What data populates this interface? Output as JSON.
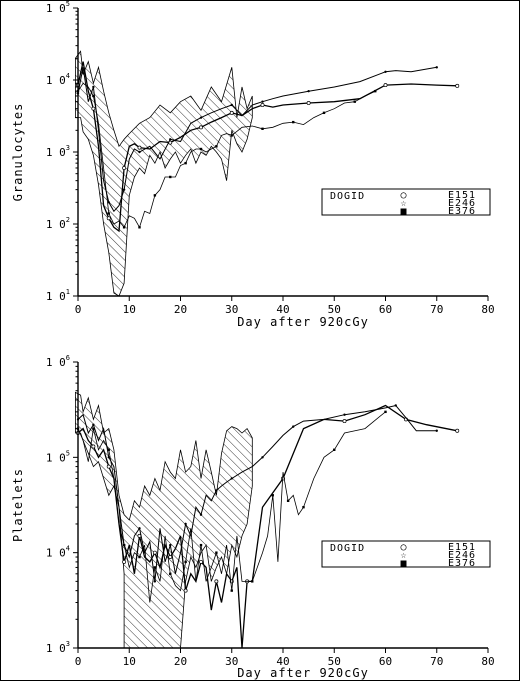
{
  "chart_data": [
    {
      "type": "line",
      "xlabel": "Day after 920cGy",
      "ylabel": "Granulocytes",
      "y_scale": "log",
      "xlim": [
        0,
        80
      ],
      "ylim": [
        10,
        100000
      ],
      "x_ticks": [
        0,
        10,
        20,
        30,
        40,
        50,
        60,
        70,
        80
      ],
      "y_ticks": [
        10,
        100,
        1000,
        10000,
        100000
      ],
      "y_tick_exponents": [
        "1",
        "2",
        "3",
        "4",
        "5"
      ],
      "legend": {
        "title": "DOGID",
        "placement": "center-right",
        "entries": [
          {
            "label": "E151",
            "marker": "○"
          },
          {
            "label": "E246",
            "marker": "☆"
          },
          {
            "label": "E376",
            "marker": "■"
          }
        ]
      },
      "band": {
        "x": [
          -0.5,
          0.5,
          1,
          2,
          3,
          4,
          5,
          6,
          7,
          8,
          9,
          10,
          12,
          14,
          16,
          18,
          20,
          22,
          24,
          26,
          28,
          30,
          31,
          32,
          33,
          34,
          34,
          33,
          32,
          31,
          30,
          29,
          28,
          27,
          26,
          25,
          24,
          23,
          22,
          21,
          20,
          19,
          18,
          17,
          16,
          15,
          14,
          13,
          12,
          11,
          10,
          9,
          8,
          7,
          6,
          5,
          4,
          3,
          2,
          1,
          0.5,
          -0.5
        ],
        "y": [
          20000,
          25000,
          12000,
          18000,
          9000,
          15000,
          7000,
          3500,
          2000,
          1200,
          1500,
          1800,
          2500,
          3000,
          4500,
          3500,
          5000,
          6000,
          3800,
          8000,
          5000,
          15000,
          3000,
          8000,
          4000,
          6000,
          3000,
          1500,
          1000,
          1300,
          2000,
          400,
          800,
          1000,
          1200,
          900,
          1000,
          700,
          1100,
          900,
          700,
          1000,
          800,
          600,
          1000,
          700,
          900,
          500,
          600,
          450,
          250,
          15,
          10,
          11,
          40,
          100,
          350,
          900,
          1500,
          1900,
          3000,
          3000
        ]
      },
      "series": [
        {
          "name": "E151",
          "x": [
            0,
            1,
            2,
            3,
            4,
            5,
            6,
            7,
            8,
            9,
            10,
            11,
            12,
            14,
            16,
            18,
            20,
            22,
            24,
            26,
            28,
            30,
            32,
            34,
            36,
            38,
            40,
            45,
            50,
            55,
            60,
            65,
            70,
            74
          ],
          "y": [
            8500,
            18000,
            7000,
            4000,
            1200,
            180,
            120,
            90,
            80,
            600,
            1200,
            1300,
            1150,
            1100,
            1400,
            1350,
            1600,
            2000,
            2200,
            2600,
            3000,
            3500,
            3200,
            4000,
            4500,
            4200,
            4500,
            4800,
            5000,
            5500,
            8500,
            8800,
            8500,
            8300
          ]
        },
        {
          "name": "E246",
          "x": [
            0,
            1,
            2,
            3,
            4,
            5,
            6,
            7,
            8,
            9,
            10,
            11,
            12,
            14,
            16,
            18,
            20,
            22,
            24,
            26,
            28,
            30,
            32,
            34,
            36,
            38,
            40,
            45,
            50,
            55,
            60,
            62,
            65,
            70
          ],
          "y": [
            6500,
            15000,
            5000,
            8000,
            2000,
            400,
            200,
            150,
            180,
            300,
            800,
            1100,
            1000,
            1200,
            800,
            1500,
            1400,
            2500,
            3000,
            3500,
            4000,
            4500,
            3200,
            4500,
            5000,
            5500,
            6000,
            7000,
            8000,
            9500,
            13000,
            13500,
            13000,
            15000
          ]
        },
        {
          "name": "E376",
          "x": [
            0,
            1,
            2,
            3,
            4,
            5,
            6,
            7,
            8,
            9,
            10,
            11,
            12,
            13,
            14,
            15,
            16,
            17,
            18,
            19,
            20,
            21,
            22,
            23,
            24,
            25,
            26,
            27,
            28,
            29,
            30,
            32,
            34,
            36,
            38,
            40,
            42,
            44,
            46,
            48,
            50,
            52,
            54,
            56,
            58
          ],
          "y": [
            7000,
            9000,
            8000,
            6000,
            2500,
            600,
            140,
            100,
            110,
            90,
            130,
            120,
            90,
            150,
            140,
            250,
            300,
            450,
            450,
            450,
            650,
            700,
            1000,
            1100,
            1100,
            1000,
            1100,
            1200,
            1700,
            1800,
            1700,
            2200,
            2300,
            2100,
            2200,
            2500,
            2600,
            2400,
            3000,
            3500,
            4000,
            4800,
            5000,
            6000,
            7000
          ]
        }
      ]
    },
    {
      "type": "line",
      "xlabel": "Day after 920cGy",
      "ylabel": "Platelets",
      "y_scale": "log",
      "xlim": [
        0,
        80
      ],
      "ylim": [
        1000,
        1000000
      ],
      "x_ticks": [
        0,
        10,
        20,
        30,
        40,
        50,
        60,
        70,
        80
      ],
      "y_ticks": [
        1000,
        10000,
        100000,
        1000000
      ],
      "y_tick_exponents": [
        "3",
        "4",
        "5",
        "6"
      ],
      "legend": {
        "title": "DOGID",
        "placement": "center-right",
        "entries": [
          {
            "label": "E151",
            "marker": "○"
          },
          {
            "label": "E246",
            "marker": "☆"
          },
          {
            "label": "E376",
            "marker": "■"
          }
        ]
      },
      "band": {
        "x": [
          -0.5,
          0.5,
          1,
          2,
          3,
          4,
          5,
          6,
          7,
          8,
          9,
          10,
          11,
          12,
          13,
          14,
          15,
          16,
          17,
          18,
          19,
          20,
          21,
          22,
          23,
          24,
          25,
          26,
          27,
          28,
          29,
          30,
          31,
          32,
          33,
          34,
          34,
          33,
          32,
          31,
          30,
          29,
          28,
          27,
          26,
          25,
          24,
          23,
          22,
          21,
          20,
          20,
          20,
          9,
          9,
          8,
          7,
          6,
          5,
          4,
          3,
          2,
          1,
          0.5,
          -0.5
        ],
        "y": [
          480000,
          450000,
          300000,
          420000,
          250000,
          350000,
          180000,
          200000,
          120000,
          40000,
          25000,
          22000,
          35000,
          30000,
          50000,
          40000,
          60000,
          45000,
          90000,
          70000,
          60000,
          120000,
          70000,
          80000,
          150000,
          60000,
          120000,
          70000,
          40000,
          110000,
          190000,
          210000,
          200000,
          180000,
          200000,
          160000,
          50000,
          20000,
          15000,
          9000,
          12000,
          6000,
          9000,
          7000,
          5000,
          12000,
          10000,
          7000,
          9000,
          5000,
          1000,
          1000,
          1000,
          1000,
          6000,
          30000,
          50000,
          40000,
          60000,
          90000,
          80000,
          110000,
          150000,
          180000,
          180000
        ]
      },
      "series": [
        {
          "name": "E151",
          "x": [
            0,
            1,
            2,
            3,
            4,
            5,
            6,
            7,
            8,
            9,
            10,
            11,
            12,
            13,
            14,
            15,
            16,
            17,
            18,
            19,
            20,
            21,
            22,
            23,
            24,
            25,
            26,
            27,
            28,
            29,
            30,
            31,
            32,
            33,
            34,
            36,
            40,
            44,
            48,
            52,
            56,
            60,
            64,
            68,
            74
          ],
          "y": [
            180000,
            200000,
            150000,
            130000,
            100000,
            120000,
            80000,
            60000,
            20000,
            8000,
            12000,
            6000,
            15000,
            9000,
            8000,
            10000,
            7000,
            12000,
            9000,
            11000,
            15000,
            4000,
            6000,
            5000,
            8000,
            7000,
            2500,
            5000,
            3000,
            6000,
            5000,
            7000,
            1000,
            5000,
            5000,
            30000,
            60000,
            200000,
            250000,
            240000,
            280000,
            350000,
            250000,
            220000,
            190000
          ]
        },
        {
          "name": "E246",
          "x": [
            0,
            1,
            2,
            3,
            4,
            5,
            6,
            7,
            8,
            9,
            10,
            11,
            12,
            13,
            14,
            15,
            16,
            17,
            18,
            19,
            20,
            21,
            22,
            23,
            24,
            25,
            26,
            27,
            28,
            29,
            30,
            32,
            34,
            36,
            38,
            40,
            42,
            44,
            48,
            52,
            56,
            60,
            62,
            64,
            66,
            70
          ],
          "y": [
            250000,
            280000,
            180000,
            220000,
            150000,
            200000,
            100000,
            80000,
            30000,
            12000,
            9000,
            15000,
            18000,
            10000,
            13000,
            5000,
            18000,
            8000,
            12000,
            6000,
            10000,
            20000,
            15000,
            30000,
            25000,
            40000,
            35000,
            45000,
            50000,
            55000,
            60000,
            70000,
            80000,
            100000,
            130000,
            170000,
            210000,
            240000,
            250000,
            280000,
            300000,
            330000,
            350000,
            260000,
            190000,
            190000
          ]
        },
        {
          "name": "E376",
          "x": [
            0,
            1,
            2,
            3,
            4,
            5,
            6,
            7,
            8,
            9,
            10,
            11,
            12,
            13,
            14,
            15,
            16,
            17,
            18,
            19,
            20,
            21,
            22,
            23,
            24,
            25,
            26,
            27,
            28,
            29,
            30,
            31,
            32,
            34,
            36,
            37,
            38,
            39,
            40,
            41,
            42,
            43,
            44,
            46,
            48,
            50,
            52,
            56,
            60
          ],
          "y": [
            200000,
            150000,
            90000,
            200000,
            120000,
            150000,
            120000,
            60000,
            20000,
            12000,
            7000,
            10000,
            9000,
            12000,
            3000,
            7000,
            5000,
            15000,
            6000,
            4500,
            4000,
            8000,
            18000,
            5000,
            12000,
            5000,
            7000,
            10000,
            6000,
            12000,
            4000,
            15000,
            5000,
            5000,
            10000,
            15000,
            40000,
            8000,
            70000,
            35000,
            40000,
            25000,
            30000,
            60000,
            100000,
            120000,
            180000,
            200000,
            300000
          ]
        }
      ]
    }
  ]
}
